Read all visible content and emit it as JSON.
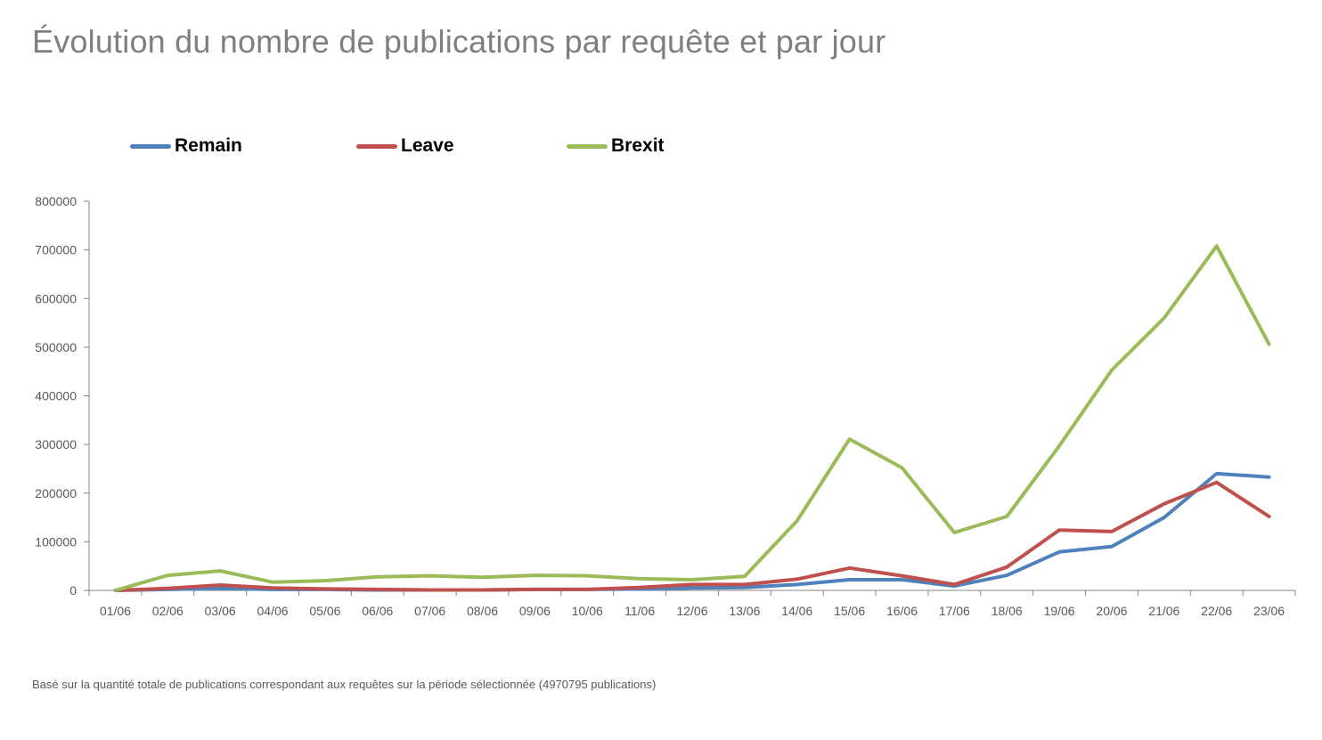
{
  "chart_data": {
    "type": "line",
    "title": "Évolution du nombre de publications par requête et par jour",
    "categories": [
      "01/06",
      "02/06",
      "03/06",
      "04/06",
      "05/06",
      "06/06",
      "07/06",
      "08/06",
      "09/06",
      "10/06",
      "11/06",
      "12/06",
      "13/06",
      "14/06",
      "15/06",
      "16/06",
      "17/06",
      "18/06",
      "19/06",
      "20/06",
      "21/06",
      "22/06",
      "23/06"
    ],
    "series": [
      {
        "name": "Remain",
        "color": "#4f81bd",
        "values": [
          0,
          2000,
          4000,
          2000,
          2000,
          1000,
          1000,
          1000,
          2000,
          2000,
          3000,
          5000,
          6000,
          12000,
          22000,
          22000,
          9000,
          31000,
          79000,
          90000,
          150000,
          240000,
          233000
        ]
      },
      {
        "name": "Leave",
        "color": "#c0504d",
        "values": [
          0,
          4000,
          11000,
          5000,
          3000,
          2000,
          1000,
          1000,
          2000,
          2000,
          6000,
          12000,
          12000,
          23000,
          46000,
          30000,
          12000,
          48000,
          124000,
          121000,
          178000,
          222000,
          152000
        ]
      },
      {
        "name": "Brexit",
        "color": "#9bbb59",
        "values": [
          0,
          31000,
          40000,
          17000,
          20000,
          28000,
          30000,
          27000,
          31000,
          30000,
          24000,
          22000,
          29000,
          143000,
          311000,
          252000,
          119000,
          152000,
          297000,
          453000,
          560000,
          708000,
          506000
        ]
      }
    ],
    "y_ticks": [
      "0",
      "100000",
      "200000",
      "300000",
      "400000",
      "500000",
      "600000",
      "700000",
      "800000"
    ],
    "ylim": [
      0,
      800000
    ],
    "grid": false,
    "legend_position": "top-left"
  },
  "footnote": "Basé sur la quantité totale de publications correspondant aux requêtes sur la période sélectionnée (4970795 publications)"
}
